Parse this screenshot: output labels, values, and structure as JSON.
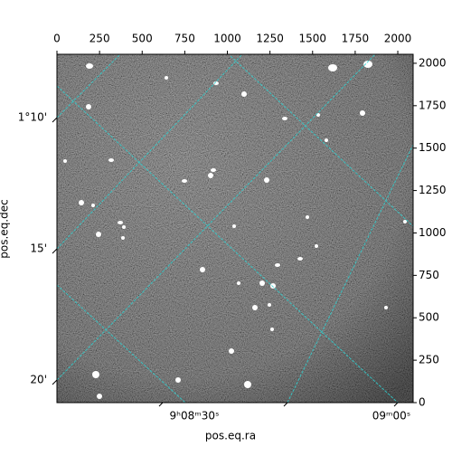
{
  "chart_data": {
    "type": "image",
    "xlim": [
      0,
      2090
    ],
    "xticks": [
      0,
      250,
      500,
      750,
      1000,
      1250,
      1500,
      1750,
      2000
    ],
    "ylim": [
      0,
      2053
    ],
    "yticks": [
      0,
      250,
      500,
      750,
      1000,
      1250,
      1500,
      1750,
      2000
    ],
    "dec_ticks": [
      "1°10'",
      "15'",
      "20'"
    ],
    "ra_ticks": [
      "9ʰ08ᵐ30ˢ",
      "09ᵐ00ˢ"
    ],
    "xlabel": "pos.eq.ra",
    "ylabel": "pos.eq.dec"
  }
}
